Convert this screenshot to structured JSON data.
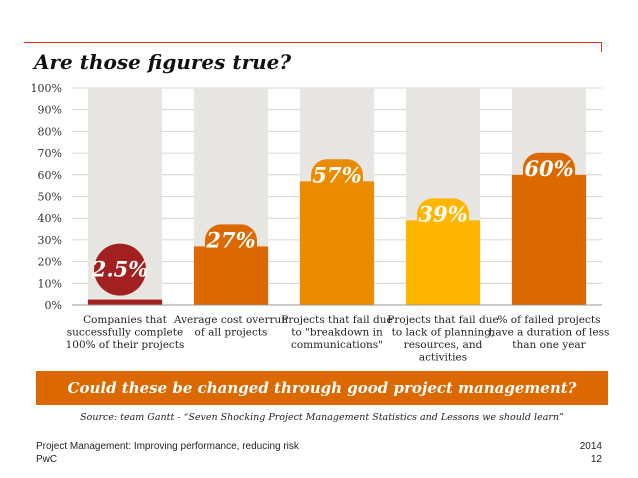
{
  "title": "Are those figures true?",
  "chart_data": {
    "type": "bar",
    "ylim": [
      0,
      100
    ],
    "yticks": [
      "0%",
      "10%",
      "20%",
      "30%",
      "40%",
      "50%",
      "60%",
      "70%",
      "80%",
      "90%",
      "100%"
    ],
    "grid": true,
    "categories": [
      [
        "Companies that",
        "successfully complete",
        "100% of their projects"
      ],
      [
        "Average cost overrun",
        "of all projects"
      ],
      [
        "Projects that fail due",
        "to \"breakdown in",
        "communications\""
      ],
      [
        "Projects that fail due",
        "to lack of planning,",
        "resources, and",
        "activities"
      ],
      [
        "% of failed projects",
        "have a duration of less",
        "than one year"
      ]
    ],
    "values": [
      2.5,
      27,
      57,
      39,
      60
    ],
    "labels": [
      "2.5%",
      "27%",
      "57%",
      "39%",
      "60%"
    ],
    "colors": [
      "#a32020",
      "#dc6900",
      "#eb8c00",
      "#ffb600",
      "#dc6900"
    ],
    "background_bar_color": "#e8e6e3"
  },
  "banner": "Could these be changed through good project management?",
  "source": "Source: team Gantt - “Seven Shocking Project Management Statistics and Lessons we should learn”",
  "footer": {
    "left_line1": "Project Management: Improving performance, reducing risk",
    "left_line2": "PwC",
    "right_line1": "2014",
    "right_line2": "12"
  }
}
